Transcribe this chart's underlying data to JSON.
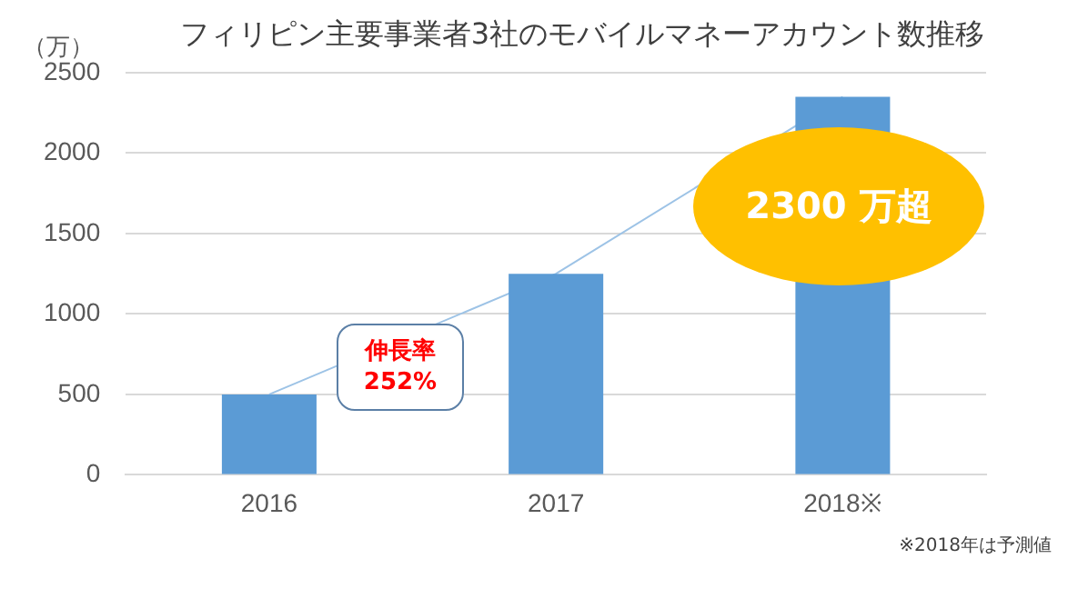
{
  "chart_data": {
    "type": "bar",
    "title": "フィリピン主要事業者3社のモバイルマネーアカウント数推移",
    "ylabel": "（万）",
    "categories": [
      "2016",
      "2017",
      "2018※"
    ],
    "series": [
      {
        "color": "#5b9bd5",
        "values": [
          500,
          1250,
          2350
        ]
      },
      {
        "type": "line",
        "color": "#9dc3e6",
        "values": [
          500,
          1250,
          2350
        ]
      }
    ],
    "ylim": [
      0,
      2500
    ],
    "yticks": [
      0,
      500,
      1000,
      1500,
      2000,
      2500
    ],
    "grid": "y",
    "legend": false,
    "marker": "none",
    "annotations": [
      "伸長率\n252%",
      "2300 万超",
      "※2018年は予測値"
    ]
  }
}
